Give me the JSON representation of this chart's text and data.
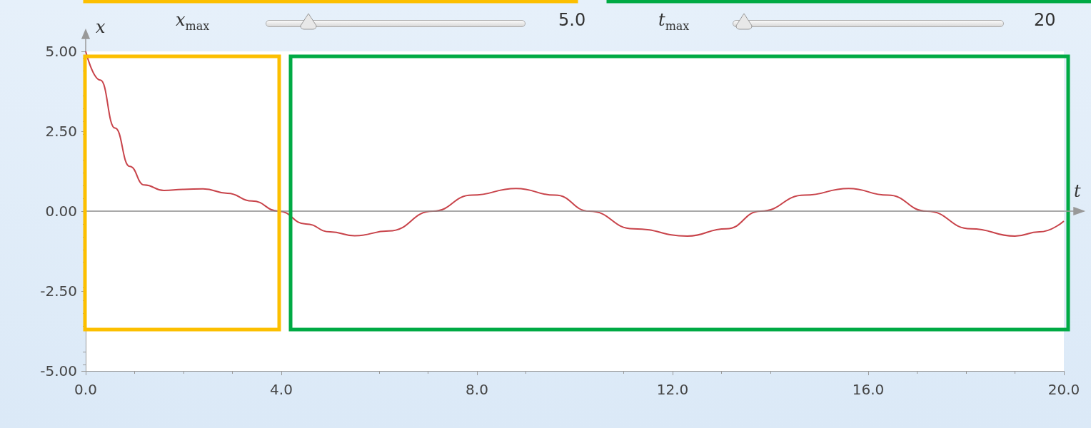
{
  "chart_data": {
    "type": "line",
    "xlabel": "t",
    "ylabel": "x",
    "x": [
      0,
      0.3,
      0.6,
      0.9,
      1.2,
      1.6,
      2.0,
      2.4,
      2.9,
      3.4,
      3.95,
      4.5,
      5.0,
      5.5,
      6.2,
      7.1,
      7.9,
      8.8,
      9.6,
      10.3,
      11.2,
      12.3,
      13.1,
      13.8,
      14.7,
      15.6,
      16.4,
      17.2,
      18.1,
      19.0,
      19.5,
      20
    ],
    "series": [
      {
        "color": "#c8434a",
        "values": [
          5.0,
          4.1,
          2.6,
          1.4,
          0.82,
          0.65,
          0.68,
          0.7,
          0.56,
          0.32,
          0,
          -0.4,
          -0.65,
          -0.77,
          -0.62,
          0,
          0.5,
          0.71,
          0.5,
          0,
          -0.55,
          -0.78,
          -0.55,
          0,
          0.5,
          0.71,
          0.5,
          0,
          -0.55,
          -0.78,
          -0.65,
          -0.31
        ]
      }
    ],
    "xlim": [
      0,
      20
    ],
    "xticks": [
      {
        "value": 0,
        "label": "0.0"
      },
      {
        "value": 4,
        "label": "4.0"
      },
      {
        "value": 8,
        "label": "8.0"
      },
      {
        "value": 12,
        "label": "12.0"
      },
      {
        "value": 16,
        "label": "16.0"
      },
      {
        "value": 20,
        "label": "20.0"
      }
    ],
    "ylim": [
      -5,
      5
    ],
    "yticks": [
      {
        "value": -5,
        "label": "-5.00"
      },
      {
        "value": -2.5,
        "label": "-2.50"
      },
      {
        "value": 0,
        "label": "0.00"
      },
      {
        "value": 2.5,
        "label": "2.50"
      },
      {
        "value": 5,
        "label": "5.00"
      }
    ],
    "ref_lines": [
      {
        "axis": "y",
        "value": 0,
        "color": "#8c8c8c"
      }
    ],
    "annotations": [
      "x$_{max}$",
      "5.0",
      "t$_{max}$",
      "20"
    ],
    "grid": false,
    "marker": "none",
    "line_style": "solid"
  }
}
